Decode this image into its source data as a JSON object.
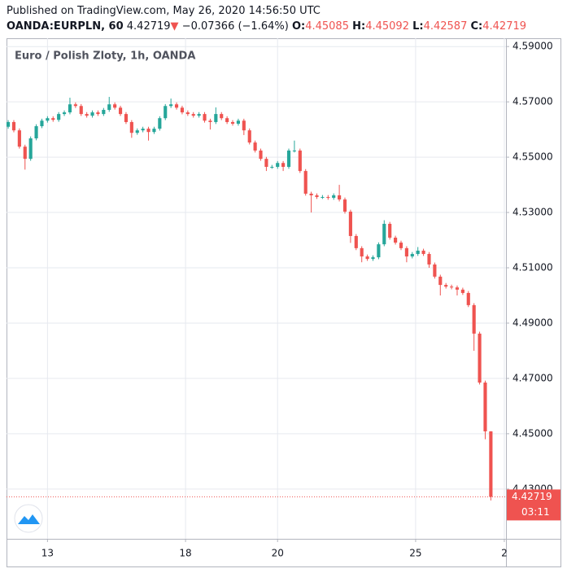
{
  "header": {
    "published": "Published on TradingView.com, May 26, 2020 14:56:50 UTC",
    "symbol": "OANDA:EURPLN, 60",
    "last": "4.42719",
    "arrow": "▼",
    "change": "−0.07366 (−1.64%)",
    "o_label": "O:",
    "o": "4.45085",
    "h_label": "H:",
    "h": "4.45092",
    "l_label": "L:",
    "l": "4.42587",
    "c_label": "C:",
    "c": "4.42719"
  },
  "chart_data": {
    "type": "candlestick",
    "title": "Euro / Polish Zloty, 1h, OANDA",
    "countdown": "03:11",
    "up_color": "#26a69a",
    "down_color": "#ef5350",
    "grid": true,
    "ylim": [
      4.412,
      4.593
    ],
    "xlim": [
      -0.3,
      88.7
    ],
    "yticks": [
      {
        "value": 4.43,
        "label": "4.43000"
      },
      {
        "value": 4.45,
        "label": "4.45000"
      },
      {
        "value": 4.47,
        "label": "4.47000"
      },
      {
        "value": 4.49,
        "label": "4.49000"
      },
      {
        "value": 4.51,
        "label": "4.51000"
      },
      {
        "value": 4.53,
        "label": "4.53000"
      },
      {
        "value": 4.55,
        "label": "4.55000"
      },
      {
        "value": 4.57,
        "label": "4.57000"
      },
      {
        "value": 4.59,
        "label": "4.59000"
      }
    ],
    "xticks": [
      {
        "value": 7,
        "label": "13"
      },
      {
        "value": 31.6,
        "label": "18"
      },
      {
        "value": 48,
        "label": "20"
      },
      {
        "value": 72.6,
        "label": "25"
      },
      {
        "value": 88.4,
        "label": "2"
      }
    ],
    "open": [
      4.561,
      4.5627,
      4.5597,
      4.5538,
      4.5494,
      4.5568,
      4.5612,
      4.5632,
      4.5641,
      4.5635,
      4.5656,
      4.5662,
      4.5691,
      4.5685,
      4.5656,
      4.565,
      4.5662,
      4.5656,
      4.5671,
      4.5691,
      4.5679,
      4.5656,
      4.5627,
      4.5588,
      4.5597,
      4.5603,
      4.5591,
      4.5603,
      4.5641,
      4.5685,
      4.5691,
      4.5679,
      4.5662,
      4.5656,
      4.565,
      4.5656,
      4.5632,
      4.5627,
      4.5656,
      4.5641,
      4.5627,
      4.5621,
      4.5632,
      4.5597,
      4.5553,
      4.5524,
      4.5494,
      4.5465,
      4.5465,
      4.5479,
      4.5465,
      4.5524,
      4.5524,
      4.545,
      4.5368,
      4.5362,
      4.5356,
      4.5356,
      4.5353,
      4.5362,
      4.5347,
      4.5303,
      4.5215,
      4.5171,
      4.5141,
      4.5132,
      4.5138,
      4.5185,
      4.5259,
      4.5209,
      4.5191,
      4.5171,
      4.5141,
      4.515,
      4.5162,
      4.515,
      4.5112,
      4.5068,
      4.5038,
      4.5032,
      4.5029,
      4.5021,
      4.5009,
      4.4965,
      4.4862,
      4.4685,
      4.45085
    ],
    "high": [
      4.5634,
      4.5634,
      4.5604,
      4.5545,
      4.5575,
      4.5619,
      4.5639,
      4.5648,
      4.5648,
      4.5663,
      4.5669,
      4.5715,
      4.5698,
      4.5692,
      4.5663,
      4.5669,
      4.5669,
      4.5678,
      4.5718,
      4.5698,
      4.5686,
      4.5663,
      4.5634,
      4.5604,
      4.561,
      4.561,
      4.561,
      4.5648,
      4.5692,
      4.5712,
      4.5698,
      4.5686,
      4.5669,
      4.5663,
      4.5663,
      4.5663,
      4.5639,
      4.568,
      4.5663,
      4.5648,
      4.5634,
      4.5639,
      4.5639,
      4.5604,
      4.556,
      4.5531,
      4.5501,
      4.5472,
      4.5486,
      4.5486,
      4.5531,
      4.556,
      4.5531,
      4.5457,
      4.5375,
      4.5369,
      4.5363,
      4.5363,
      4.5369,
      4.54,
      4.5354,
      4.531,
      4.5222,
      4.5178,
      4.5148,
      4.5145,
      4.5192,
      4.5272,
      4.5266,
      4.5216,
      4.5198,
      4.5178,
      4.5157,
      4.5175,
      4.5169,
      4.5157,
      4.5119,
      4.5075,
      4.5045,
      4.5039,
      4.5036,
      4.5028,
      4.5016,
      4.4972,
      4.4869,
      4.4692,
      4.45092
    ],
    "low": [
      4.5603,
      4.559,
      4.5531,
      4.5455,
      4.5487,
      4.5561,
      4.5605,
      4.5625,
      4.5628,
      4.5628,
      4.5649,
      4.5655,
      4.5678,
      4.5649,
      4.5643,
      4.5643,
      4.5649,
      4.5649,
      4.5664,
      4.5672,
      4.5649,
      4.562,
      4.557,
      4.5581,
      4.559,
      4.556,
      4.5584,
      4.5596,
      4.5634,
      4.5678,
      4.5672,
      4.5655,
      4.5649,
      4.5643,
      4.5643,
      4.5625,
      4.56,
      4.562,
      4.5634,
      4.562,
      4.5614,
      4.5614,
      4.558,
      4.5546,
      4.5517,
      4.5487,
      4.545,
      4.5458,
      4.5458,
      4.545,
      4.5458,
      4.5517,
      4.5443,
      4.5361,
      4.53,
      4.5349,
      4.5349,
      4.5346,
      4.5346,
      4.534,
      4.5296,
      4.519,
      4.5164,
      4.512,
      4.5125,
      4.5125,
      4.5131,
      4.5178,
      4.5202,
      4.5184,
      4.5164,
      4.512,
      4.5134,
      4.5143,
      4.5143,
      4.51,
      4.5061,
      4.5,
      4.5025,
      4.5022,
      4.5,
      4.5002,
      4.4958,
      4.48,
      4.4678,
      4.448,
      4.42587
    ],
    "close": [
      4.5627,
      4.5597,
      4.5538,
      4.5494,
      4.5568,
      4.5612,
      4.5632,
      4.5641,
      4.5635,
      4.5656,
      4.5662,
      4.5691,
      4.5685,
      4.5656,
      4.565,
      4.5662,
      4.5656,
      4.5671,
      4.5691,
      4.5679,
      4.5656,
      4.5627,
      4.5588,
      4.5597,
      4.5603,
      4.5591,
      4.5603,
      4.5641,
      4.5685,
      4.5691,
      4.5679,
      4.5662,
      4.5656,
      4.565,
      4.5656,
      4.5632,
      4.5627,
      4.5656,
      4.5641,
      4.5627,
      4.5621,
      4.5632,
      4.5597,
      4.5553,
      4.5524,
      4.5494,
      4.5465,
      4.5465,
      4.5479,
      4.5465,
      4.5524,
      4.5524,
      4.545,
      4.5368,
      4.5362,
      4.5356,
      4.5356,
      4.5353,
      4.5362,
      4.5347,
      4.5303,
      4.5215,
      4.5171,
      4.5141,
      4.5132,
      4.5138,
      4.5185,
      4.5259,
      4.5209,
      4.5191,
      4.5171,
      4.5141,
      4.515,
      4.5162,
      4.515,
      4.5112,
      4.5068,
      4.5038,
      4.5032,
      4.5029,
      4.5021,
      4.5009,
      4.4965,
      4.4862,
      4.4685,
      4.45085,
      4.42719
    ]
  }
}
